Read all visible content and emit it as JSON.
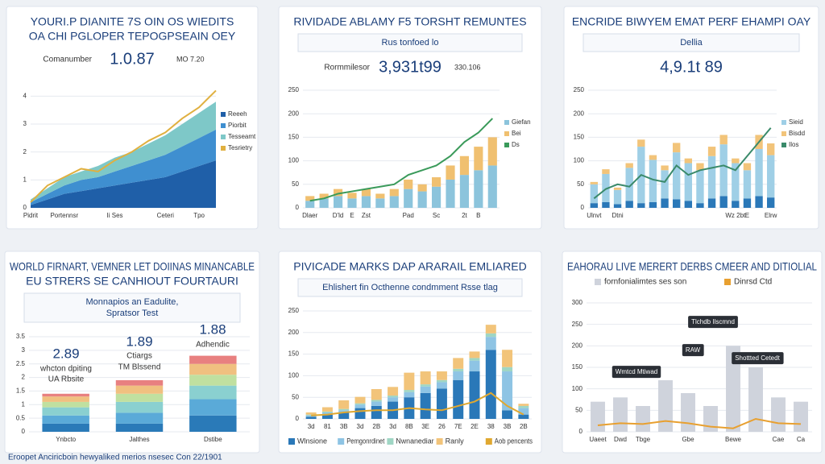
{
  "chart_data": [
    {
      "type": "area",
      "title": [
        "YOURI.P DIANITE 7S OIN OS WIEDITS",
        "OA CHI PGLOPER TEPOGPSEAIN OEY"
      ],
      "kpi": {
        "label": "Comanumber",
        "value": "1.0.87",
        "note": "MO 7.20"
      },
      "categories": [
        "Pidrit",
        null,
        "Portennsr",
        null,
        null,
        "Ii Ses",
        null,
        null,
        "Ceteri",
        null,
        "Tpo",
        null
      ],
      "ylim": [
        0,
        4.5
      ],
      "yticks": [
        0,
        1,
        2,
        3,
        4
      ],
      "legend": "right",
      "series": [
        {
          "name": "Reeeh",
          "type": "area",
          "color": "#1f5fa8",
          "values": [
            0.1,
            0.3,
            0.5,
            0.6,
            0.7,
            0.8,
            0.9,
            1.0,
            1.1,
            1.3,
            1.5,
            1.7
          ]
        },
        {
          "name": "Piorbit",
          "type": "area",
          "color": "#3f8fd0",
          "values": [
            0.1,
            0.2,
            0.3,
            0.4,
            0.4,
            0.5,
            0.6,
            0.7,
            0.8,
            0.9,
            1.0,
            1.1
          ]
        },
        {
          "name": "Tesseamt",
          "type": "area",
          "color": "#7ec8c8",
          "values": [
            0.1,
            0.2,
            0.3,
            0.3,
            0.4,
            0.5,
            0.5,
            0.6,
            0.7,
            0.8,
            0.9,
            1.0
          ]
        },
        {
          "name": "Tesrietry",
          "type": "line",
          "color": "#e0b040",
          "values": [
            0.2,
            0.8,
            1.1,
            1.4,
            1.3,
            1.7,
            2.0,
            2.4,
            2.7,
            3.2,
            3.6,
            4.2
          ]
        }
      ]
    },
    {
      "type": "bar",
      "title": [
        "RIVIDADE ABLAMY F5 TORSHT REMUNTES"
      ],
      "subtitle": [
        "Rus tonfoed lo"
      ],
      "kpi": {
        "label": "Rormmilesor",
        "value": "3,931t99",
        "note": "330.106"
      },
      "categories": [
        "Dlaer",
        null,
        "D'ld",
        "E",
        "Zst",
        null,
        null,
        "Pad",
        null,
        "Sc",
        null,
        "2t",
        "B",
        null
      ],
      "ylim": [
        0,
        250
      ],
      "yticks": [
        0,
        50,
        100,
        150,
        200,
        250
      ],
      "legend": "right",
      "series": [
        {
          "name": "Giefan",
          "type": "bar",
          "color": "#8cc4dc",
          "values": [
            15,
            20,
            25,
            20,
            25,
            20,
            25,
            40,
            35,
            45,
            60,
            70,
            80,
            90
          ]
        },
        {
          "name": "Bei",
          "type": "bar",
          "color": "#f0c070",
          "values": [
            10,
            10,
            15,
            12,
            15,
            10,
            15,
            20,
            15,
            20,
            30,
            40,
            50,
            60
          ]
        },
        {
          "name": "Ds",
          "type": "line",
          "color": "#3a9a5a",
          "values": [
            15,
            20,
            30,
            35,
            40,
            45,
            50,
            70,
            80,
            90,
            110,
            140,
            160,
            190
          ]
        }
      ]
    },
    {
      "type": "bar",
      "title": [
        "ENCRIDE BIWYEM EMAT PERF EHAMPI OAY"
      ],
      "subtitle": [
        "Dellia"
      ],
      "kpi": {
        "value": "4,9.1t 89"
      },
      "categories": [
        "Ulnvt",
        null,
        "Dtni",
        null,
        null,
        null,
        null,
        null,
        null,
        null,
        null,
        null,
        "Wz 2bt",
        "E",
        null,
        "Elrw"
      ],
      "ylim": [
        0,
        250
      ],
      "yticks": [
        0,
        50,
        100,
        150,
        200,
        250
      ],
      "legend": "right",
      "series": [
        {
          "type": "bar",
          "color": "#2a78b8",
          "values": [
            10,
            12,
            8,
            15,
            10,
            12,
            20,
            18,
            15,
            10,
            20,
            25,
            15,
            20,
            25,
            22
          ]
        },
        {
          "name": "Sieid",
          "type": "bar",
          "color": "#9fcfe6",
          "values": [
            40,
            60,
            30,
            70,
            120,
            90,
            60,
            100,
            80,
            70,
            90,
            110,
            80,
            60,
            100,
            90
          ]
        },
        {
          "name": "Bisdd",
          "type": "bar",
          "color": "#f2c47a",
          "values": [
            5,
            10,
            5,
            10,
            15,
            10,
            10,
            20,
            10,
            15,
            20,
            20,
            10,
            15,
            30,
            25
          ]
        },
        {
          "name": "Ilos",
          "type": "line",
          "color": "#3a8a6a",
          "values": [
            20,
            40,
            50,
            45,
            70,
            60,
            55,
            90,
            70,
            80,
            85,
            90,
            80,
            110,
            140,
            170
          ]
        }
      ]
    },
    {
      "type": "bar",
      "title": [
        "WORLD FIRNART, VEMNER LET DOIINAS MINANCABLE",
        "EU STRERS SE CANHIOUT FOURTAURI"
      ],
      "subtitle": [
        "Monnapios an Eadulite,",
        "Spratsor Test"
      ],
      "categories": [
        "Ynbcto",
        "Jalthes",
        "Dstibe"
      ],
      "ylim": [
        0,
        3.5
      ],
      "yticks": [
        0,
        0.5,
        1,
        1.5,
        2,
        2.5,
        3,
        3.5
      ],
      "annotations": [
        "2.89",
        "whcton dpiting",
        "UA Rbsite",
        "1.89",
        "Ctiargs",
        "TM Blssend",
        "1.88",
        "Adhendic"
      ],
      "series": [
        {
          "type": "bar",
          "color": "#2a7ab8",
          "values": [
            0.3,
            0.3,
            0.6
          ]
        },
        {
          "type": "bar",
          "color": "#5aaad8",
          "values": [
            0.3,
            0.4,
            0.6
          ]
        },
        {
          "type": "bar",
          "color": "#8ad0d0",
          "values": [
            0.3,
            0.4,
            0.5
          ]
        },
        {
          "type": "bar",
          "color": "#c0e0a0",
          "values": [
            0.2,
            0.3,
            0.4
          ]
        },
        {
          "type": "bar",
          "color": "#f0c080",
          "values": [
            0.2,
            0.3,
            0.4
          ]
        },
        {
          "type": "bar",
          "color": "#e88080",
          "values": [
            0.1,
            0.2,
            0.3
          ]
        }
      ]
    },
    {
      "type": "bar",
      "title": [
        "PIVICADE MARKS DAP ARARAIL EMLIARED"
      ],
      "subtitle": [
        "Ehlishert fin Octhenne condmment   Rsse tlag"
      ],
      "categories": [
        "3d",
        "81",
        "3B",
        "3d",
        "2B",
        "3d",
        "8B",
        "3E",
        "26",
        "7E",
        "2E",
        "38",
        "3B",
        "2B"
      ],
      "ylim": [
        0,
        250
      ],
      "yticks": [
        0,
        50,
        100,
        150,
        200,
        250
      ],
      "legend": "bottom",
      "series": [
        {
          "name": "Wlnsione",
          "type": "bar",
          "color": "#2a78b8",
          "values": [
            5,
            10,
            15,
            25,
            30,
            40,
            50,
            60,
            70,
            90,
            110,
            160,
            20,
            10
          ]
        },
        {
          "name": "Pemgonrdinet",
          "type": "bar",
          "color": "#8ec4e4",
          "values": [
            3,
            5,
            5,
            8,
            10,
            10,
            12,
            15,
            15,
            20,
            25,
            30,
            90,
            15
          ]
        },
        {
          "name": "Nwnanediar",
          "type": "bar",
          "color": "#9fd6c4",
          "values": [
            2,
            2,
            3,
            3,
            4,
            4,
            5,
            5,
            5,
            6,
            6,
            8,
            10,
            5
          ]
        },
        {
          "name": "Ranly",
          "type": "bar",
          "color": "#f2c47a",
          "values": [
            5,
            10,
            20,
            15,
            25,
            20,
            40,
            30,
            20,
            25,
            15,
            20,
            40,
            5
          ]
        },
        {
          "name": "Aob pencents",
          "type": "line",
          "color": "#e0a830",
          "values": [
            8,
            10,
            15,
            18,
            20,
            20,
            25,
            22,
            20,
            30,
            40,
            60,
            30,
            10
          ]
        }
      ]
    },
    {
      "type": "bar",
      "title": [
        "EAHORAU LIVE MERERT DERBS CMEER AND DITIOLIAL"
      ],
      "categories": [
        "Uaeet",
        "Dwd",
        "Tbge",
        null,
        "Gbe",
        null,
        "Bewe",
        null,
        "Cae",
        "Ca"
      ],
      "ylim": [
        0,
        300
      ],
      "yticks": [
        0,
        50,
        100,
        150,
        200,
        250,
        300
      ],
      "legend": "top",
      "annotations": [
        "Tlchdb Ilscmnd",
        "RAW",
        "Wmtcd Mtiwad",
        "Shottted Cetedt"
      ],
      "series": [
        {
          "name": "fornfonialimtes ses son",
          "type": "bar",
          "color": "#cfd3dc",
          "values": [
            70,
            80,
            60,
            120,
            90,
            60,
            200,
            150,
            80,
            70
          ]
        },
        {
          "name": "Dinrsd Ctd",
          "type": "line",
          "color": "#e8a030",
          "values": [
            15,
            20,
            18,
            25,
            20,
            12,
            8,
            30,
            20,
            18
          ]
        }
      ]
    }
  ],
  "footer": "Eroopet Anciricboin hewyaliked merios nsesec Con 22/1901"
}
